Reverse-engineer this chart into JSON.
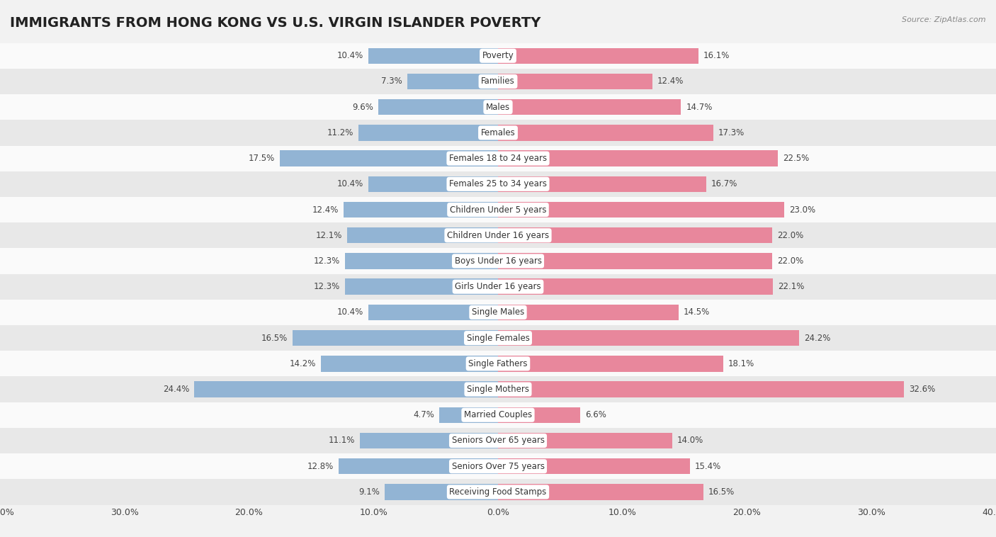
{
  "title": "IMMIGRANTS FROM HONG KONG VS U.S. VIRGIN ISLANDER POVERTY",
  "source": "Source: ZipAtlas.com",
  "categories": [
    "Poverty",
    "Families",
    "Males",
    "Females",
    "Females 18 to 24 years",
    "Females 25 to 34 years",
    "Children Under 5 years",
    "Children Under 16 years",
    "Boys Under 16 years",
    "Girls Under 16 years",
    "Single Males",
    "Single Females",
    "Single Fathers",
    "Single Mothers",
    "Married Couples",
    "Seniors Over 65 years",
    "Seniors Over 75 years",
    "Receiving Food Stamps"
  ],
  "hk_values": [
    10.4,
    7.3,
    9.6,
    11.2,
    17.5,
    10.4,
    12.4,
    12.1,
    12.3,
    12.3,
    10.4,
    16.5,
    14.2,
    24.4,
    4.7,
    11.1,
    12.8,
    9.1
  ],
  "vi_values": [
    16.1,
    12.4,
    14.7,
    17.3,
    22.5,
    16.7,
    23.0,
    22.0,
    22.0,
    22.1,
    14.5,
    24.2,
    18.1,
    32.6,
    6.6,
    14.0,
    15.4,
    16.5
  ],
  "hk_color": "#92b4d4",
  "vi_color": "#e8879c",
  "hk_label": "Immigrants from Hong Kong",
  "vi_label": "U.S. Virgin Islander",
  "background_color": "#f2f2f2",
  "row_color_light": "#fafafa",
  "row_color_dark": "#e8e8e8",
  "xlim": 40.0,
  "bar_height": 0.62,
  "title_fontsize": 14,
  "label_fontsize": 8.5,
  "value_fontsize": 8.5,
  "tick_fontsize": 9
}
